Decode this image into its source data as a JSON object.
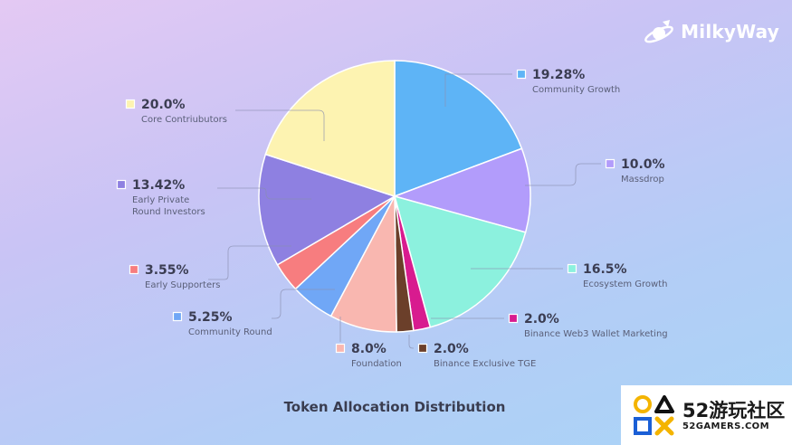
{
  "brand": {
    "name": "MilkyWay",
    "logo_icon": "rocket-planet-icon"
  },
  "watermark": {
    "big": "52游玩社区",
    "small": "52GAMERS.COM",
    "logo_icon": "gamepad-symbols-icon"
  },
  "chart_data": {
    "type": "pie",
    "title": "Token Allocation Distribution",
    "slices": [
      {
        "label": "Community Growth",
        "value": 19.28,
        "display": "19.28%",
        "color": "#5eb4f6"
      },
      {
        "label": "Massdrop",
        "value": 10.0,
        "display": "10.0%",
        "color": "#b29cfb"
      },
      {
        "label": "Ecosystem Growth",
        "value": 16.5,
        "display": "16.5%",
        "color": "#8cf1de"
      },
      {
        "label": "Binance Web3 Wallet Marketing",
        "value": 2.0,
        "display": "2.0%",
        "color": "#d81b8f"
      },
      {
        "label": "Binance Exclusive TGE",
        "value": 2.0,
        "display": "2.0%",
        "color": "#6b3f2a"
      },
      {
        "label": "Foundation",
        "value": 8.0,
        "display": "8.0%",
        "color": "#f9b7b0"
      },
      {
        "label": "Community Round",
        "value": 5.25,
        "display": "5.25%",
        "color": "#70a7f6"
      },
      {
        "label": "Early Supporters",
        "value": 3.55,
        "display": "3.55%",
        "color": "#f77d7f"
      },
      {
        "label": "Early Private\nRound Investors",
        "value": 13.42,
        "display": "13.42%",
        "color": "#8e80e1"
      },
      {
        "label": "Core Contriubutors",
        "value": 20.0,
        "display": "20.0%",
        "color": "#fdf3b1"
      }
    ]
  }
}
